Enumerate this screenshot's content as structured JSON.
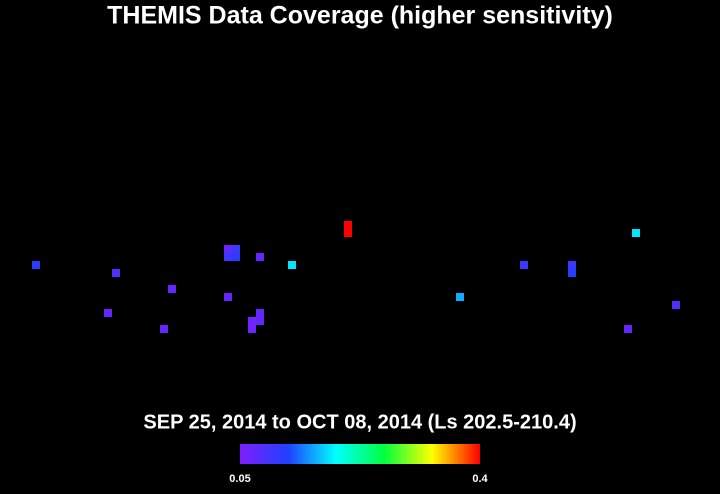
{
  "chart_data": {
    "type": "scatter",
    "title": "THEMIS Data Coverage (higher sensitivity)",
    "subtitle": "SEP 25, 2014 to OCT 08, 2014 (Ls 202.5-210.4)",
    "x": [
      18,
      58,
      86,
      54,
      82,
      114,
      118,
      114,
      118,
      130,
      114,
      146,
      174,
      174,
      130,
      130,
      126,
      126,
      230,
      262,
      286,
      286,
      318,
      338,
      314
    ],
    "y": [
      -12.5,
      -16.5,
      -24.5,
      -36.5,
      -44.5,
      -4.5,
      -4.5,
      -8.5,
      -8.5,
      -8.5,
      -28.5,
      -12.5,
      7.5,
      3.5,
      -36.5,
      -40.5,
      -40.5,
      -44.5,
      -28.5,
      -12.5,
      -12.5,
      -16.5,
      3.5,
      -32.5,
      -44.5
    ],
    "values": [
      0.11,
      0.08,
      0.07,
      0.07,
      0.07,
      0.07,
      0.1,
      0.1,
      0.11,
      0.07,
      0.07,
      0.18,
      0.4,
      0.4,
      0.07,
      0.07,
      0.06,
      0.06,
      0.16,
      0.1,
      0.1,
      0.12,
      0.18,
      0.08,
      0.07
    ],
    "xlim": [
      0,
      360
    ],
    "ylim": [
      -90,
      90
    ],
    "colorbar": {
      "range": [
        0.05,
        0.4
      ],
      "ticks": [
        0.05,
        0.4
      ],
      "colors": [
        "#7f1fff",
        "#2040ff",
        "#00ffff",
        "#00ff40",
        "#ffff00",
        "#ff0000"
      ]
    }
  }
}
